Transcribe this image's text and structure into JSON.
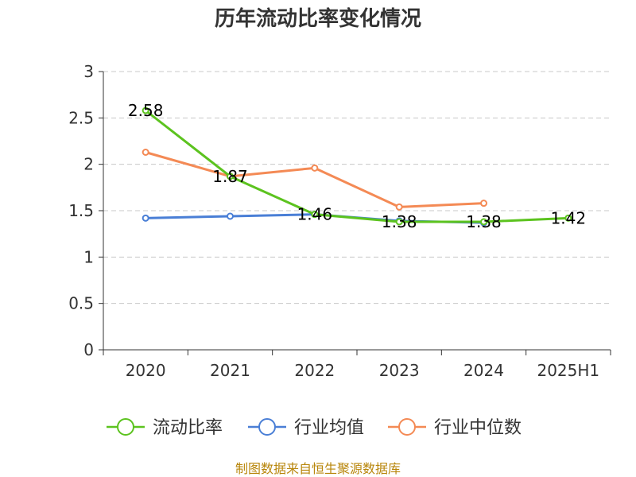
{
  "colors": {
    "current_ratio": "#5cc31f",
    "industry_avg": "#4a7fd6",
    "industry_median": "#f48a55",
    "grid": "#c8c8c8",
    "axis": "#333333",
    "source": "#b8860b"
  },
  "source_note": "制图数据来自恒生聚源数据库",
  "chart_data": {
    "type": "line",
    "title": "历年流动比率变化情况",
    "xlabel": "",
    "ylabel": "",
    "categories": [
      "2020",
      "2021",
      "2022",
      "2023",
      "2024",
      "2025H1"
    ],
    "ylim": [
      0,
      3
    ],
    "yticks": [
      0,
      0.5,
      1,
      1.5,
      2,
      2.5,
      3
    ],
    "ytick_labels": [
      "0",
      "0.5",
      "1",
      "1.5",
      "2",
      "2.5",
      "3"
    ],
    "grid": true,
    "legend_position": "bottom",
    "series": [
      {
        "key": "current_ratio",
        "name": "流动比率",
        "values": [
          2.58,
          1.87,
          1.46,
          1.38,
          1.38,
          1.42
        ],
        "labels": [
          "2.58",
          "1.87",
          "1.46",
          "1.38",
          "1.38",
          "1.42"
        ]
      },
      {
        "key": "industry_avg",
        "name": "行业均值",
        "values": [
          1.42,
          1.44,
          1.46,
          1.39,
          1.37,
          null
        ],
        "labels": []
      },
      {
        "key": "industry_median",
        "name": "行业中位数",
        "values": [
          2.13,
          1.87,
          1.96,
          1.54,
          1.58,
          null
        ],
        "labels": []
      }
    ]
  }
}
